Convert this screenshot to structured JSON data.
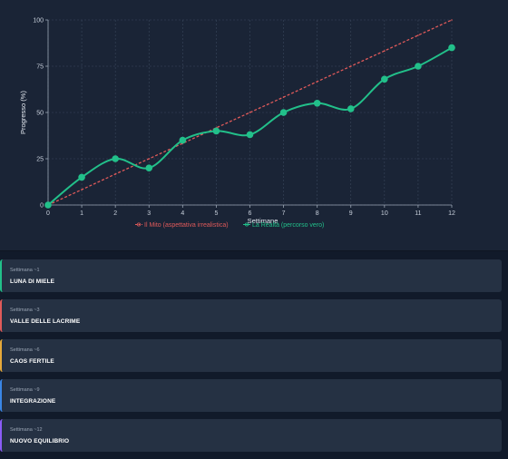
{
  "chart_data": {
    "type": "line",
    "xlabel": "Settimane",
    "ylabel": "Progresso (%)",
    "x": [
      0,
      1,
      2,
      3,
      4,
      5,
      6,
      7,
      8,
      9,
      10,
      11,
      12
    ],
    "xlim": [
      0,
      12
    ],
    "ylim": [
      0,
      100
    ],
    "yticks": [
      0,
      25,
      50,
      75,
      100
    ],
    "grid": true,
    "legend_position": "bottom",
    "series": [
      {
        "name": "Il Mito (aspettativa irrealistica)",
        "color": "#e05a5a",
        "style": "dashed",
        "values": [
          0,
          8.3,
          16.7,
          25,
          33.3,
          41.7,
          50,
          58.3,
          66.7,
          75,
          83.3,
          91.7,
          100
        ]
      },
      {
        "name": "La Realtà (percorso vero)",
        "color": "#22c08a",
        "style": "solid",
        "values": [
          0,
          15,
          25,
          20,
          35,
          40,
          38,
          50,
          55,
          52,
          68,
          75,
          85
        ]
      }
    ]
  },
  "phases": [
    {
      "week": "Settimana ~1",
      "title": "LUNA DI MIELE",
      "color": "#22c08a"
    },
    {
      "week": "Settimana ~3",
      "title": "VALLE DELLE LACRIME",
      "color": "#e05a5a"
    },
    {
      "week": "Settimana ~6",
      "title": "CAOS FERTILE",
      "color": "#e6a93a"
    },
    {
      "week": "Settimana ~9",
      "title": "INTEGRAZIONE",
      "color": "#3a86e6"
    },
    {
      "week": "Settimana ~12",
      "title": "NUOVO EQUILIBRIO",
      "color": "#8b5cf6"
    }
  ]
}
